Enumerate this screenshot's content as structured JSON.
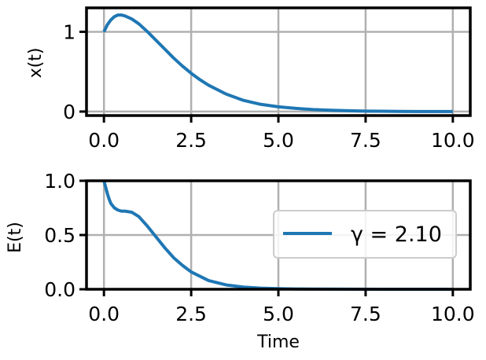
{
  "chart_data": [
    {
      "type": "line",
      "xlabel": "",
      "ylabel": "x(t)",
      "xlim": [
        -0.5,
        10.5
      ],
      "ylim": [
        -0.05,
        1.3
      ],
      "xticks": [
        0.0,
        2.5,
        5.0,
        7.5,
        10.0
      ],
      "xtick_labels": [
        "0.0",
        "2.5",
        "5.0",
        "7.5",
        "10.0"
      ],
      "yticks": [
        0,
        1
      ],
      "ytick_labels": [
        "0",
        "1"
      ],
      "grid": true,
      "series": [
        {
          "color": "#1f77b4",
          "x": [
            0,
            0.1,
            0.2,
            0.3,
            0.4,
            0.5,
            0.6,
            0.8,
            1.0,
            1.25,
            1.5,
            1.75,
            2.0,
            2.25,
            2.5,
            2.75,
            3.0,
            3.5,
            4.0,
            4.5,
            5.0,
            5.5,
            6.0,
            6.5,
            7.0,
            7.5,
            8.0,
            8.5,
            9.0,
            9.5,
            10.0
          ],
          "y": [
            1.0,
            1.09,
            1.15,
            1.19,
            1.21,
            1.21,
            1.2,
            1.16,
            1.1,
            1.0,
            0.89,
            0.78,
            0.67,
            0.57,
            0.48,
            0.4,
            0.33,
            0.22,
            0.14,
            0.09,
            0.06,
            0.04,
            0.025,
            0.016,
            0.01,
            0.006,
            0.004,
            0.002,
            0.001,
            0.001,
            0.0
          ]
        }
      ]
    },
    {
      "type": "line",
      "xlabel": "Time",
      "ylabel": "E(t)",
      "xlim": [
        -0.5,
        10.5
      ],
      "ylim": [
        0.0,
        1.0
      ],
      "xticks": [
        0.0,
        2.5,
        5.0,
        7.5,
        10.0
      ],
      "xtick_labels": [
        "0.0",
        "2.5",
        "5.0",
        "7.5",
        "10.0"
      ],
      "yticks": [
        0.0,
        0.5,
        1.0
      ],
      "ytick_labels": [
        "0.0",
        "0.5",
        "1.0"
      ],
      "grid": true,
      "legend_position": "center-right",
      "series": [
        {
          "name": "γ = 2.10",
          "color": "#1f77b4",
          "x": [
            0,
            0.05,
            0.1,
            0.15,
            0.2,
            0.3,
            0.4,
            0.5,
            0.6,
            0.8,
            1.0,
            1.25,
            1.5,
            1.75,
            2.0,
            2.25,
            2.5,
            2.75,
            3.0,
            3.5,
            4.0,
            4.5,
            5.0,
            5.5,
            6.0,
            7.0,
            8.0,
            9.0,
            10.0
          ],
          "y": [
            1.0,
            0.94,
            0.88,
            0.83,
            0.79,
            0.75,
            0.73,
            0.72,
            0.72,
            0.71,
            0.67,
            0.58,
            0.48,
            0.38,
            0.29,
            0.22,
            0.16,
            0.12,
            0.08,
            0.04,
            0.02,
            0.01,
            0.005,
            0.003,
            0.002,
            0.001,
            0.0,
            0.0,
            0.0
          ]
        }
      ]
    }
  ]
}
